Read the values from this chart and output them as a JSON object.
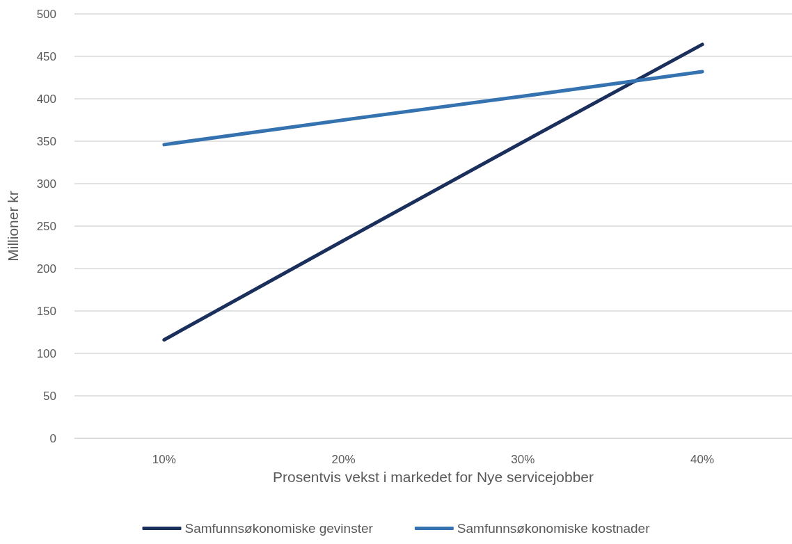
{
  "chart_data": {
    "type": "line",
    "xlabel": "Prosentvis vekst i markedet for Nye servicejobber",
    "ylabel": "Millioner kr",
    "categories": [
      "10%",
      "20%",
      "30%",
      "40%"
    ],
    "series": [
      {
        "name": "Samfunnsøkonomiske gevinster",
        "color": "#1b2f5c",
        "values": [
          116,
          233,
          349,
          464
        ]
      },
      {
        "name": "Samfunnsøkonomiske kostnader",
        "color": "#3572b0",
        "values": [
          346,
          375,
          403,
          432
        ]
      }
    ],
    "ylim": [
      0,
      500
    ],
    "yticks": [
      0,
      50,
      100,
      150,
      200,
      250,
      300,
      350,
      400,
      450,
      500
    ],
    "grid": "y",
    "legend": "bottom",
    "marker": "none",
    "line_style": "solid"
  }
}
